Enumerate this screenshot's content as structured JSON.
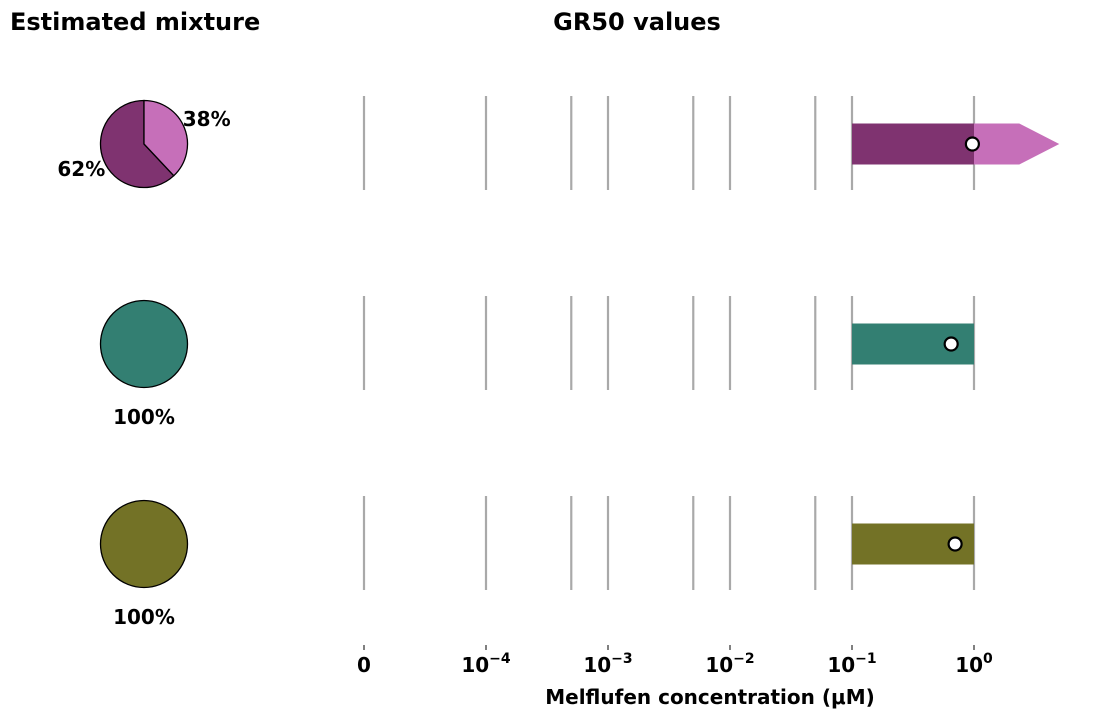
{
  "colors": {
    "gridline": "#a9a9a9",
    "marker_fill": "#ffffff",
    "marker_stroke": "#000000",
    "pie_edge": "#000000"
  },
  "chart_data": [
    {
      "type": "pie",
      "title": "Estimated mixture",
      "rows": [
        {
          "slices": [
            {
              "label": "62%",
              "value": 62,
              "color": "#7f3370"
            },
            {
              "label": "38%",
              "value": 38,
              "color": "#c66fb9"
            }
          ]
        },
        {
          "slices": [
            {
              "label": "100%",
              "value": 100,
              "color": "#337f72"
            }
          ]
        },
        {
          "slices": [
            {
              "label": "100%",
              "value": 100,
              "color": "#737226"
            }
          ]
        }
      ]
    },
    {
      "type": "bar",
      "title": "GR50 values",
      "xlabel": "Melflufen concentration (μM)",
      "xscale": "symlog",
      "xtick_labels": [
        {
          "value": 0,
          "base": "0",
          "exp": ""
        },
        {
          "value": 0.0001,
          "base": "10",
          "exp": "−4"
        },
        {
          "value": 0.001,
          "base": "10",
          "exp": "−3"
        },
        {
          "value": 0.01,
          "base": "10",
          "exp": "−2"
        },
        {
          "value": 0.1,
          "base": "10",
          "exp": "−1"
        },
        {
          "value": 1,
          "base": "10",
          "exp": "0"
        }
      ],
      "gridlines": [
        0,
        0.0001,
        0.0005,
        0.001,
        0.005,
        0.01,
        0.05,
        0.1,
        1
      ],
      "rows": [
        {
          "segments": [
            {
              "from": 0.1,
              "to": 1,
              "color": "#7f3370"
            },
            {
              "from": 1,
              "to": 5,
              "color": "#c66fb9",
              "open_ended": true
            }
          ],
          "gr50": 0.97
        },
        {
          "segments": [
            {
              "from": 0.1,
              "to": 1,
              "color": "#337f72"
            }
          ],
          "gr50": 0.65
        },
        {
          "segments": [
            {
              "from": 0.1,
              "to": 1,
              "color": "#737226"
            }
          ],
          "gr50": 0.7
        }
      ]
    }
  ]
}
